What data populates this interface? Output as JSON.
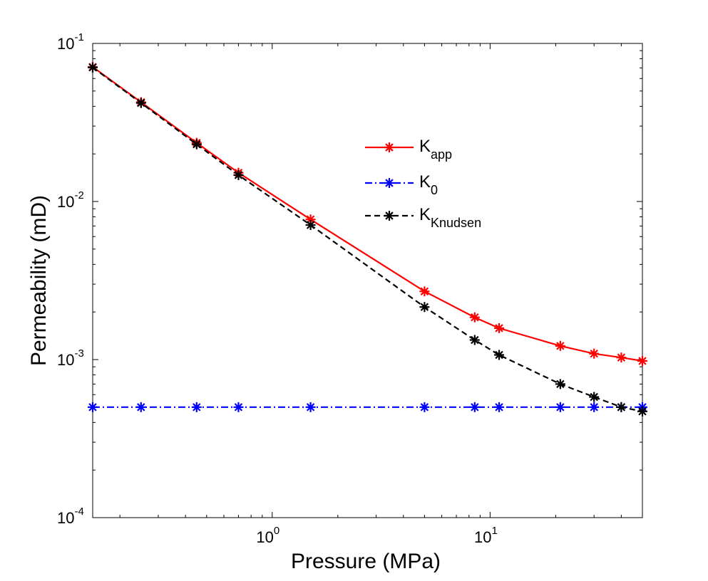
{
  "chart_data": {
    "type": "line",
    "scale": {
      "x": "log",
      "y": "log"
    },
    "xlabel": "Pressure (MPa)",
    "ylabel": "Permeability (mD)",
    "xlim": [
      0.15,
      50
    ],
    "ylim": [
      0.0001,
      0.1
    ],
    "x_ticks": [
      {
        "value": 1,
        "base": "10",
        "exp": "0"
      },
      {
        "value": 10,
        "base": "10",
        "exp": "1"
      }
    ],
    "y_ticks": [
      {
        "value": 0.0001,
        "base": "10",
        "exp": "-4"
      },
      {
        "value": 0.001,
        "base": "10",
        "exp": "-3"
      },
      {
        "value": 0.01,
        "base": "10",
        "exp": "-2"
      },
      {
        "value": 0.1,
        "base": "10",
        "exp": "-1"
      }
    ],
    "legend_position": "upper-center",
    "x": [
      0.15,
      0.25,
      0.45,
      0.7,
      1.5,
      5,
      8.5,
      11,
      21,
      30,
      40,
      50
    ],
    "series": [
      {
        "name": "K_app",
        "label_main": "K",
        "label_sub": "app",
        "color": "#ff0000",
        "dash": "solid",
        "values": [
          0.071,
          0.0425,
          0.0235,
          0.0152,
          0.0077,
          0.0027,
          0.00185,
          0.00158,
          0.00122,
          0.00109,
          0.00103,
          0.00098
        ]
      },
      {
        "name": "K_0",
        "label_main": "K",
        "label_sub": "0",
        "color": "#0000ff",
        "dash": "dashdot",
        "values": [
          0.0005,
          0.0005,
          0.0005,
          0.0005,
          0.0005,
          0.0005,
          0.0005,
          0.0005,
          0.0005,
          0.0005,
          0.0005,
          0.0005
        ]
      },
      {
        "name": "K_Knudsen",
        "label_main": "K",
        "label_sub": "Knudsen",
        "color": "#000000",
        "dash": "dashed",
        "values": [
          0.0705,
          0.042,
          0.023,
          0.0147,
          0.0071,
          0.00215,
          0.00133,
          0.00107,
          0.0007,
          0.00058,
          0.0005,
          0.00047
        ]
      }
    ]
  }
}
